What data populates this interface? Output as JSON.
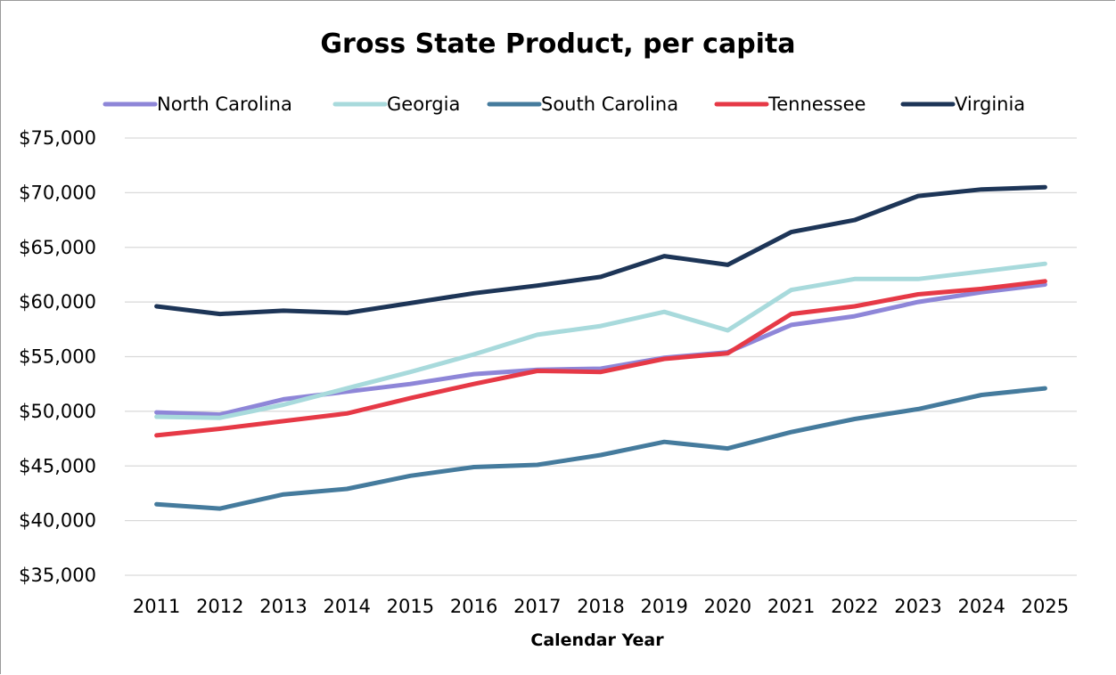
{
  "chart_data": {
    "type": "line",
    "title": "Gross State Product, per capita",
    "xlabel": "Calendar Year",
    "ylabel": "",
    "ylim": [
      35000,
      75000
    ],
    "y_ticks": [
      35000,
      40000,
      45000,
      50000,
      55000,
      60000,
      65000,
      70000,
      75000
    ],
    "y_tick_labels": [
      "$35,000",
      "$40,000",
      "$45,000",
      "$50,000",
      "$55,000",
      "$60,000",
      "$65,000",
      "$70,000",
      "$75,000"
    ],
    "grid": true,
    "legend_position": "top",
    "categories": [
      "2011",
      "2012",
      "2013",
      "2014",
      "2015",
      "2016",
      "2017",
      "2018",
      "2019",
      "2020",
      "2021",
      "2022",
      "2023",
      "2024",
      "2025"
    ],
    "series": [
      {
        "name": "North Carolina",
        "color": "#8E86D8",
        "values": [
          49900,
          49700,
          51100,
          51800,
          52500,
          53400,
          53800,
          53900,
          54900,
          55400,
          57900,
          58700,
          60000,
          60900,
          61600
        ]
      },
      {
        "name": "Georgia",
        "color": "#A8DADC",
        "values": [
          49500,
          49400,
          50600,
          52100,
          53600,
          55200,
          57000,
          57800,
          59100,
          57400,
          61100,
          62100,
          62100,
          62800,
          63500
        ]
      },
      {
        "name": "South Carolina",
        "color": "#457B9D",
        "values": [
          41500,
          41100,
          42400,
          42900,
          44100,
          44900,
          45100,
          46000,
          47200,
          46600,
          48100,
          49300,
          50200,
          51500,
          52100
        ]
      },
      {
        "name": "Tennessee",
        "color": "#E63946",
        "values": [
          47800,
          48400,
          49100,
          49800,
          51200,
          52500,
          53700,
          53600,
          54800,
          55300,
          58900,
          59600,
          60700,
          61200,
          61900
        ]
      },
      {
        "name": "Virginia",
        "color": "#1D3557",
        "values": [
          59600,
          58900,
          59200,
          59000,
          59900,
          60800,
          61500,
          62300,
          64200,
          63400,
          66400,
          67500,
          69700,
          70300,
          70500
        ]
      }
    ]
  }
}
